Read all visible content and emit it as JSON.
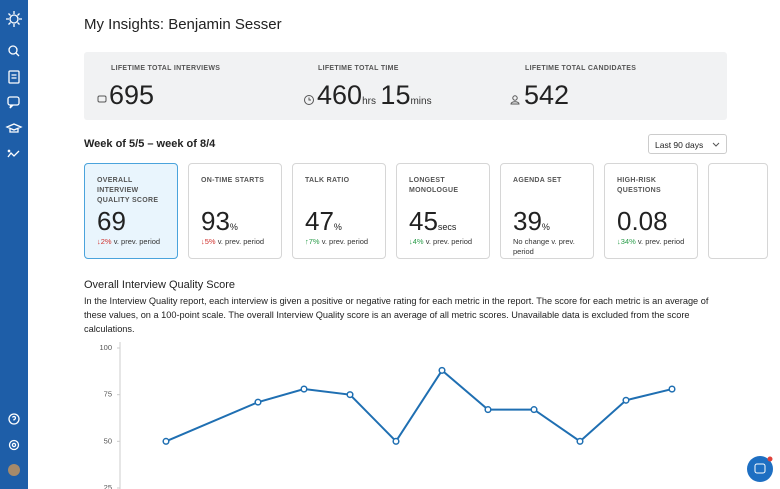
{
  "header": {
    "title": "My Insights: Benjamin Sesser"
  },
  "lifetime": [
    {
      "label": "LIFETIME TOTAL INTERVIEWS",
      "value": "695"
    },
    {
      "label": "LIFETIME TOTAL TIME",
      "value": "460",
      "unit": "hrs",
      "value2": "15",
      "unit2": "mins"
    },
    {
      "label": "LIFETIME TOTAL CANDIDATES",
      "value": "542"
    }
  ],
  "period": {
    "label": "Week of 5/5 – week of 8/4",
    "dropdown": "Last 90 days"
  },
  "cards": [
    {
      "label": "OVERALL INTERVIEW QUALITY SCORE",
      "value": "69",
      "change": "↓2%",
      "note": "v. prev. period",
      "trend": "down"
    },
    {
      "label": "ON-TIME STARTS",
      "value": "93",
      "unit": "%",
      "change": "↓5%",
      "note": "v. prev. period",
      "trend": "down"
    },
    {
      "label": "TALK RATIO",
      "value": "47",
      "unit": "%",
      "change": "↑7%",
      "note": "v. prev. period",
      "trend": "up"
    },
    {
      "label": "LONGEST MONOLOGUE",
      "value": "45",
      "unit": "secs",
      "change": "↓4%",
      "note": "v. prev. period",
      "trend": "up"
    },
    {
      "label": "AGENDA SET",
      "value": "39",
      "unit": "%",
      "note": "No change v. prev. period"
    },
    {
      "label": "HIGH-RISK QUESTIONS",
      "value": "0.08",
      "change": "↓34%",
      "note": "v. prev. period",
      "trend": "up"
    }
  ],
  "section": {
    "title": "Overall Interview Quality Score",
    "text": "In the Interview Quality report, each interview is given a positive or negative rating for each metric in the report. The score for each metric is an average of these values, on a 100-point scale. The overall Interview Quality score is an average of all metric scores. Unavailable data is excluded from the score calculations."
  },
  "chart": {
    "type": "line",
    "x": [
      0,
      2,
      3,
      4,
      5,
      6,
      7,
      8,
      9,
      10,
      11
    ],
    "values": [
      50,
      71,
      78,
      75,
      50,
      88,
      67,
      67,
      50,
      72,
      78
    ],
    "color": "#1f6fb2",
    "xlim": [
      0,
      11
    ],
    "ylim": [
      25,
      100
    ],
    "yticks": [
      25,
      50,
      75,
      100
    ]
  }
}
